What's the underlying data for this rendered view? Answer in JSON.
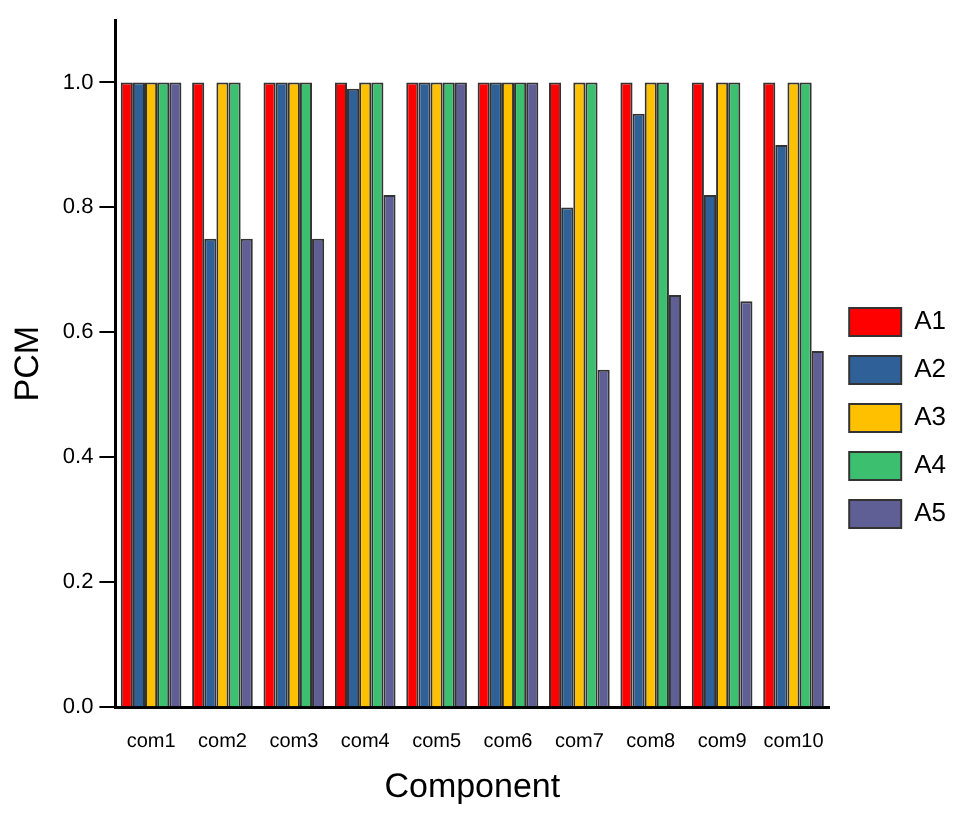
{
  "chart_data": {
    "type": "bar",
    "xlabel": "Component",
    "ylabel": "PCM",
    "categories": [
      "com1",
      "com2",
      "com3",
      "com4",
      "com5",
      "com6",
      "com7",
      "com8",
      "com9",
      "com10"
    ],
    "series": [
      {
        "name": "A1",
        "color": "#ff0000",
        "values": [
          1,
          1,
          1,
          1,
          1,
          1,
          1,
          1,
          1,
          1
        ]
      },
      {
        "name": "A2",
        "color": "#2f6098",
        "values": [
          1,
          0.75,
          1,
          0.99,
          1,
          1,
          0.8,
          0.95,
          0.82,
          0.9
        ]
      },
      {
        "name": "A3",
        "color": "#ffc000",
        "values": [
          1,
          1,
          1,
          1,
          1,
          1,
          1,
          1,
          1,
          1
        ]
      },
      {
        "name": "A4",
        "color": "#3cc070",
        "values": [
          1,
          1,
          1,
          1,
          1,
          1,
          1,
          1,
          1,
          1
        ]
      },
      {
        "name": "A5",
        "color": "#5f5f96",
        "values": [
          1,
          0.75,
          0.75,
          0.82,
          1,
          1,
          0.54,
          0.66,
          0.65,
          0.57
        ]
      }
    ],
    "ylim": [
      0,
      1.1
    ],
    "yticks": [
      {
        "value": 0,
        "label": "0.0"
      },
      {
        "value": 0.2,
        "label": "0.2"
      },
      {
        "value": 0.4,
        "label": "0.4"
      },
      {
        "value": 0.6,
        "label": "0.6"
      },
      {
        "value": 0.8,
        "label": "0.8"
      },
      {
        "value": 1,
        "label": "1.0"
      }
    ],
    "grid": false,
    "legend": "right"
  }
}
